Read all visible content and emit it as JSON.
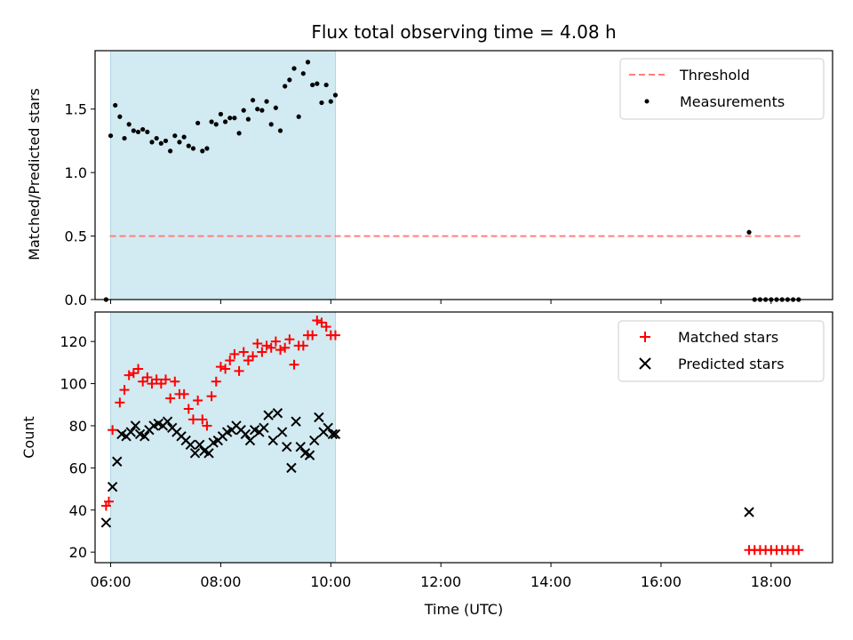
{
  "chart_data": [
    {
      "type": "scatter",
      "title": "Flux total observing time = 4.08 h",
      "xlabel": "",
      "ylabel": "Matched/Predicted stars",
      "xlim": [
        "05:43",
        "19:07"
      ],
      "ylim": [
        0,
        1.96
      ],
      "yticks": [
        0.0,
        0.5,
        1.0,
        1.5
      ],
      "ytick_labels": [
        "0.0",
        "0.5",
        "1.0",
        "1.5"
      ],
      "xticks": [
        "06:00",
        "08:00",
        "10:00",
        "12:00",
        "14:00",
        "16:00",
        "18:00"
      ],
      "shaded_span": [
        "06:00",
        "10:05"
      ],
      "shaded_color": "#add8e6",
      "legend_position": "upper right",
      "series": [
        {
          "name": "Threshold",
          "kind": "dashed-line",
          "color": "#ff7f7f",
          "x": [
            "05:59",
            "18:32"
          ],
          "y": [
            0.5,
            0.5
          ]
        },
        {
          "name": "Measurements",
          "kind": "points",
          "color": "#000000",
          "x": [
            "05:55",
            "06:00",
            "06:05",
            "06:10",
            "06:15",
            "06:20",
            "06:25",
            "06:30",
            "06:35",
            "06:40",
            "06:45",
            "06:50",
            "06:55",
            "07:00",
            "07:05",
            "07:10",
            "07:15",
            "07:20",
            "07:25",
            "07:30",
            "07:35",
            "07:40",
            "07:45",
            "07:50",
            "07:55",
            "08:00",
            "08:05",
            "08:10",
            "08:15",
            "08:20",
            "08:25",
            "08:30",
            "08:35",
            "08:40",
            "08:45",
            "08:50",
            "08:55",
            "09:00",
            "09:05",
            "09:10",
            "09:15",
            "09:20",
            "09:25",
            "09:30",
            "09:35",
            "09:40",
            "09:45",
            "09:50",
            "09:55",
            "10:00",
            "10:05",
            "17:36",
            "17:42",
            "17:48",
            "17:54",
            "18:00",
            "18:06",
            "18:12",
            "18:18",
            "18:24",
            "18:30"
          ],
          "y": [
            0.0,
            1.29,
            1.53,
            1.44,
            1.27,
            1.38,
            1.33,
            1.32,
            1.34,
            1.32,
            1.24,
            1.27,
            1.23,
            1.25,
            1.17,
            1.29,
            1.24,
            1.28,
            1.21,
            1.19,
            1.39,
            1.17,
            1.19,
            1.4,
            1.38,
            1.46,
            1.4,
            1.43,
            1.43,
            1.31,
            1.49,
            1.42,
            1.57,
            1.5,
            1.49,
            1.56,
            1.38,
            1.51,
            1.33,
            1.68,
            1.73,
            1.82,
            1.44,
            1.78,
            1.87,
            1.69,
            1.7,
            1.55,
            1.69,
            1.56,
            1.61,
            0.53,
            0.0,
            0.0,
            0.0,
            0.0,
            0.0,
            0.0,
            0.0,
            0.0,
            0.0
          ]
        }
      ]
    },
    {
      "type": "scatter",
      "title": "",
      "xlabel": "Time (UTC)",
      "ylabel": "Count",
      "xlim": [
        "05:43",
        "19:07"
      ],
      "ylim": [
        15,
        134
      ],
      "yticks": [
        20,
        40,
        60,
        80,
        100,
        120
      ],
      "ytick_labels": [
        "20",
        "40",
        "60",
        "80",
        "100",
        "120"
      ],
      "xticks": [
        "06:00",
        "08:00",
        "10:00",
        "12:00",
        "14:00",
        "16:00",
        "18:00"
      ],
      "xtick_labels": [
        "06:00",
        "08:00",
        "10:00",
        "12:00",
        "14:00",
        "16:00",
        "18:00"
      ],
      "shaded_span": [
        "06:00",
        "10:05"
      ],
      "shaded_color": "#add8e6",
      "legend_position": "upper right",
      "series": [
        {
          "name": "Matched stars",
          "kind": "plus",
          "color": "#ff0000",
          "x": [
            "05:55",
            "05:58",
            "06:02",
            "06:10",
            "06:15",
            "06:20",
            "06:25",
            "06:30",
            "06:35",
            "06:40",
            "06:45",
            "06:50",
            "06:55",
            "07:00",
            "07:05",
            "07:10",
            "07:15",
            "07:20",
            "07:25",
            "07:30",
            "07:35",
            "07:40",
            "07:45",
            "07:50",
            "07:55",
            "08:00",
            "08:05",
            "08:10",
            "08:15",
            "08:20",
            "08:25",
            "08:30",
            "08:35",
            "08:40",
            "08:45",
            "08:50",
            "08:55",
            "09:00",
            "09:05",
            "09:10",
            "09:15",
            "09:20",
            "09:25",
            "09:30",
            "09:35",
            "09:40",
            "09:45",
            "09:50",
            "09:55",
            "10:00",
            "10:05",
            "17:36",
            "17:42",
            "17:48",
            "17:54",
            "18:00",
            "18:06",
            "18:12",
            "18:18",
            "18:24",
            "18:30"
          ],
          "y": [
            42,
            44,
            78,
            91,
            97,
            104,
            105,
            107,
            101,
            103,
            100,
            102,
            100,
            102,
            93,
            101,
            95,
            95,
            88,
            83,
            92,
            83,
            80,
            94,
            101,
            108,
            107,
            111,
            114,
            106,
            115,
            111,
            113,
            119,
            115,
            118,
            117,
            120,
            116,
            117,
            121,
            109,
            118,
            118,
            123,
            123,
            130,
            129,
            127,
            123,
            123,
            21,
            21,
            21,
            21,
            21,
            21,
            21,
            21,
            21,
            21
          ]
        },
        {
          "name": "Predicted stars",
          "kind": "x",
          "color": "#000000",
          "x": [
            "05:55",
            "06:02",
            "06:07",
            "06:12",
            "06:17",
            "06:22",
            "06:27",
            "06:32",
            "06:37",
            "06:42",
            "06:47",
            "06:52",
            "06:57",
            "07:02",
            "07:07",
            "07:12",
            "07:17",
            "07:22",
            "07:27",
            "07:32",
            "07:37",
            "07:42",
            "07:47",
            "07:52",
            "07:57",
            "08:02",
            "08:07",
            "08:12",
            "08:17",
            "08:22",
            "08:27",
            "08:32",
            "08:37",
            "08:42",
            "08:47",
            "08:52",
            "08:57",
            "09:02",
            "09:07",
            "09:12",
            "09:17",
            "09:22",
            "09:27",
            "09:32",
            "09:37",
            "09:42",
            "09:47",
            "09:52",
            "09:57",
            "10:02",
            "10:05",
            "17:36"
          ],
          "y": [
            34,
            51,
            63,
            76,
            75,
            77,
            80,
            76,
            75,
            78,
            80,
            81,
            80,
            82,
            79,
            77,
            75,
            73,
            71,
            67,
            71,
            68,
            67,
            72,
            73,
            75,
            77,
            78,
            80,
            78,
            76,
            73,
            78,
            77,
            79,
            85,
            73,
            86,
            77,
            70,
            60,
            82,
            70,
            67,
            66,
            73,
            84,
            77,
            79,
            76,
            76,
            39
          ]
        }
      ]
    }
  ]
}
